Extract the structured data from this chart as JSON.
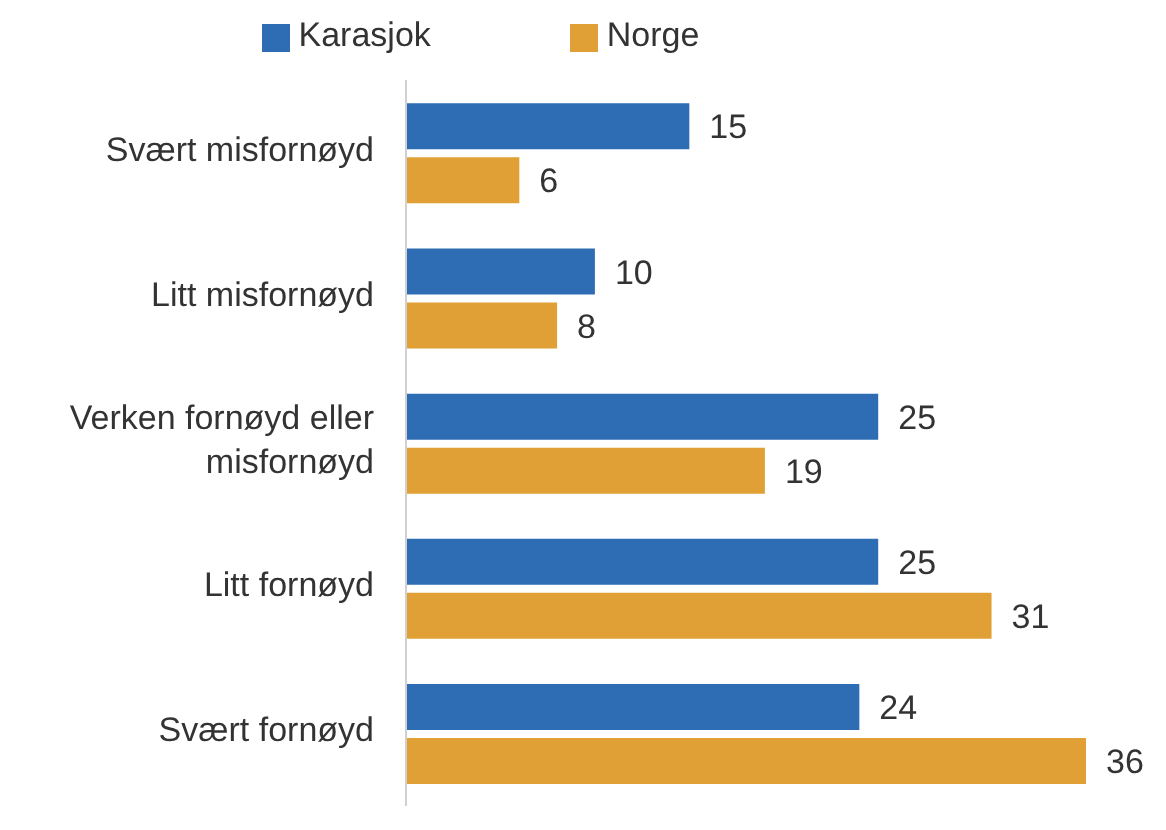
{
  "chart_data": {
    "type": "bar",
    "orientation": "horizontal",
    "categories": [
      "Svært misfornøyd",
      "Litt misfornøyd",
      "Verken fornøyd eller misfornøyd",
      "Litt fornøyd",
      "Svært fornøyd"
    ],
    "series": [
      {
        "name": "Karasjok",
        "color": "#2e6db4",
        "values": [
          15,
          10,
          25,
          25,
          24
        ]
      },
      {
        "name": "Norge",
        "color": "#e0a035",
        "values": [
          6,
          8,
          19,
          31,
          36
        ]
      }
    ],
    "data_labels": true,
    "legend": "top",
    "grid": false
  }
}
